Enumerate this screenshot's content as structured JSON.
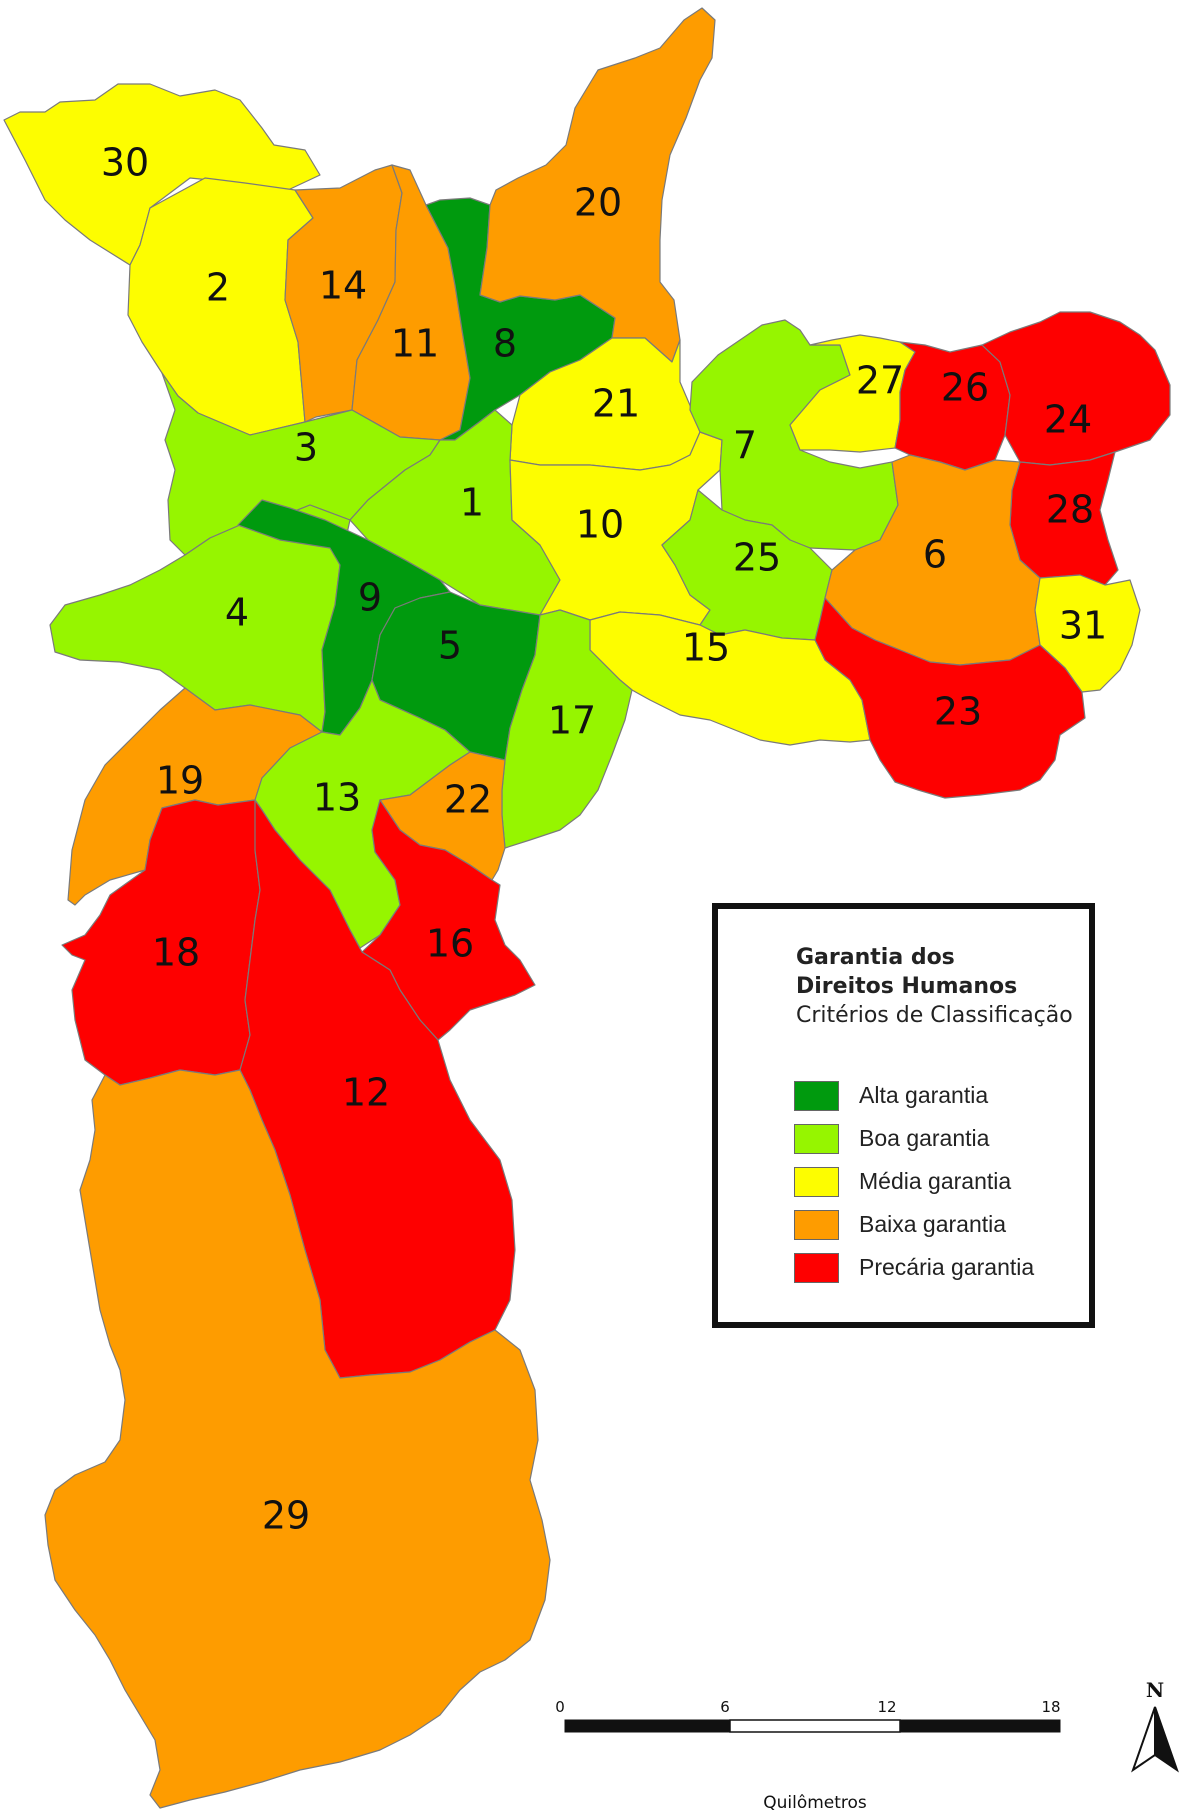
{
  "legend": {
    "title_line1": "Garantia dos",
    "title_line2": "Direitos Humanos",
    "subtitle": "Critérios de Classificação",
    "items": [
      {
        "label": "Alta garantia",
        "color": "#009a0e"
      },
      {
        "label": "Boa garantia",
        "color": "#96f500"
      },
      {
        "label": "Média garantia",
        "color": "#fdfd00"
      },
      {
        "label": "Baixa garantia",
        "color": "#fe9c00"
      },
      {
        "label": "Precária garantia",
        "color": "#fe0000"
      }
    ]
  },
  "regions": [
    {
      "id": "1",
      "class": "Boa garantia",
      "color": "#96f500"
    },
    {
      "id": "2",
      "class": "Média garantia",
      "color": "#fdfd00"
    },
    {
      "id": "3",
      "class": "Boa garantia",
      "color": "#96f500"
    },
    {
      "id": "4",
      "class": "Boa garantia",
      "color": "#96f500"
    },
    {
      "id": "5",
      "class": "Alta garantia",
      "color": "#009a0e"
    },
    {
      "id": "6",
      "class": "Baixa garantia",
      "color": "#fe9c00"
    },
    {
      "id": "7",
      "class": "Boa garantia",
      "color": "#96f500"
    },
    {
      "id": "8",
      "class": "Alta garantia",
      "color": "#009a0e"
    },
    {
      "id": "9",
      "class": "Alta garantia",
      "color": "#009a0e"
    },
    {
      "id": "10",
      "class": "Média garantia",
      "color": "#fdfd00"
    },
    {
      "id": "11",
      "class": "Baixa garantia",
      "color": "#fe9c00"
    },
    {
      "id": "12",
      "class": "Precária garantia",
      "color": "#fe0000"
    },
    {
      "id": "13",
      "class": "Boa garantia",
      "color": "#96f500"
    },
    {
      "id": "14",
      "class": "Baixa garantia",
      "color": "#fe9c00"
    },
    {
      "id": "15",
      "class": "Média garantia",
      "color": "#fdfd00"
    },
    {
      "id": "16",
      "class": "Precária garantia",
      "color": "#fe0000"
    },
    {
      "id": "17",
      "class": "Boa garantia",
      "color": "#96f500"
    },
    {
      "id": "18",
      "class": "Precária garantia",
      "color": "#fe0000"
    },
    {
      "id": "19",
      "class": "Baixa garantia",
      "color": "#fe9c00"
    },
    {
      "id": "20",
      "class": "Baixa garantia",
      "color": "#fe9c00"
    },
    {
      "id": "21",
      "class": "Média garantia",
      "color": "#fdfd00"
    },
    {
      "id": "22",
      "class": "Baixa garantia",
      "color": "#fe9c00"
    },
    {
      "id": "23",
      "class": "Precária garantia",
      "color": "#fe0000"
    },
    {
      "id": "24",
      "class": "Precária garantia",
      "color": "#fe0000"
    },
    {
      "id": "25",
      "class": "Boa garantia",
      "color": "#96f500"
    },
    {
      "id": "26",
      "class": "Precária garantia",
      "color": "#fe0000"
    },
    {
      "id": "27",
      "class": "Média garantia",
      "color": "#fdfd00"
    },
    {
      "id": "28",
      "class": "Precária garantia",
      "color": "#fe0000"
    },
    {
      "id": "29",
      "class": "Baixa garantia",
      "color": "#fe9c00"
    },
    {
      "id": "30",
      "class": "Média garantia",
      "color": "#fdfd00"
    },
    {
      "id": "31",
      "class": "Média garantia",
      "color": "#fdfd00"
    }
  ],
  "scale_bar": {
    "ticks": [
      "0",
      "6",
      "12",
      "18"
    ],
    "unit": "Quilômetros"
  },
  "north_arrow": {
    "letter": "N",
    "icon": "north-arrow-icon"
  }
}
